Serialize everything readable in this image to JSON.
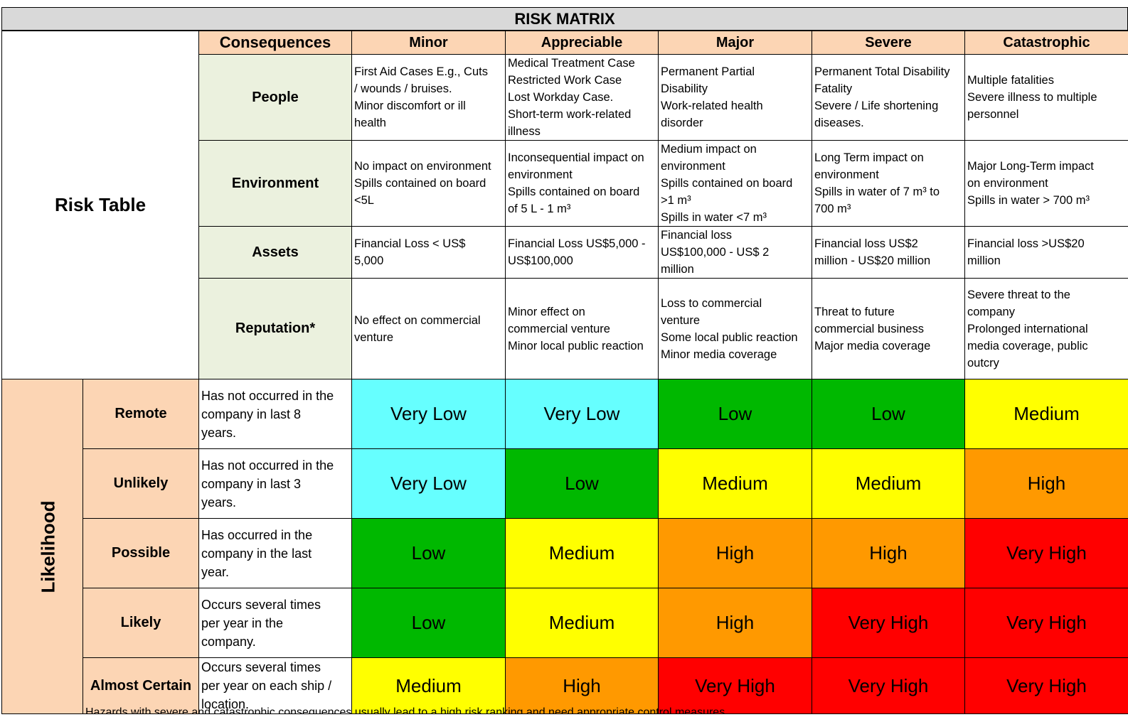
{
  "title": "RISK MATRIX",
  "risk_table_label": "Risk Table",
  "consequences_label": "Consequences",
  "likelihood_label": "Likelihood",
  "severity_levels": [
    "Minor",
    "Appreciable",
    "Major",
    "Severe",
    "Catastrophic"
  ],
  "categories": [
    {
      "name": "People",
      "descriptions": [
        "First Aid Cases E.g., Cuts\n/ wounds / bruises.\nMinor discomfort or ill\nhealth",
        "Medical Treatment Case\nRestricted Work Case\nLost Workday Case.\nShort-term work-related\nillness",
        "Permanent Partial\nDisability\nWork-related health\ndisorder",
        "Permanent Total Disability\nFatality\nSevere / Life shortening\ndiseases.",
        "Multiple fatalities\nSevere illness to multiple\npersonnel"
      ]
    },
    {
      "name": "Environment",
      "descriptions": [
        "No impact on environment\nSpills contained on board\n<5L",
        "Inconsequential impact on\nenvironment\nSpills contained on board\nof 5 L - 1 m³",
        "Medium impact on\nenvironment\nSpills contained on board\n>1 m³\nSpills in water <7 m³",
        "Long Term impact on\nenvironment\nSpills in water of 7 m³ to\n700 m³",
        "Major Long-Term impact\non environment\nSpills in water > 700 m³"
      ]
    },
    {
      "name": "Assets",
      "descriptions": [
        "Financial Loss < US$\n5,000",
        "Financial Loss US$5,000 -\nUS$100,000",
        "Financial loss\nUS$100,000 - US$ 2\nmillion",
        "Financial loss US$2\nmillion - US$20 million",
        "Financial loss >US$20\nmillion"
      ]
    },
    {
      "name": "Reputation*",
      "descriptions": [
        "No effect on commercial\nventure",
        "Minor effect on\ncommercial venture\nMinor local public reaction",
        "Loss to commercial\nventure\nSome local public reaction\nMinor media coverage",
        "Threat to future\ncommercial business\nMajor media coverage",
        "Severe threat to the\ncompany\nProlonged international\nmedia coverage, public\noutcry"
      ]
    }
  ],
  "likelihood_rows": [
    {
      "name": "Remote",
      "description": "Has not occurred in the\ncompany in last 8\nyears.",
      "ratings": [
        "Very Low",
        "Very Low",
        "Low",
        "Low",
        "Medium"
      ]
    },
    {
      "name": "Unlikely",
      "description": "Has not occurred in the\ncompany in last 3\nyears.",
      "ratings": [
        "Very Low",
        "Low",
        "Medium",
        "Medium",
        "High"
      ]
    },
    {
      "name": "Possible",
      "description": "Has occurred in the\ncompany in the last\nyear.",
      "ratings": [
        "Low",
        "Medium",
        "High",
        "High",
        "Very High"
      ]
    },
    {
      "name": "Likely",
      "description": "Occurs several times\nper year in the\ncompany.",
      "ratings": [
        "Low",
        "Medium",
        "High",
        "Very High",
        "Very High"
      ]
    },
    {
      "name": "Almost Certain",
      "description": "Occurs several times\nper year on each ship /\nlocation.",
      "ratings": [
        "Medium",
        "High",
        "Very High",
        "Very High",
        "Very High"
      ]
    }
  ],
  "rating_colors": {
    "Very Low": "#66ffff",
    "Low": "#00b800",
    "Medium": "#ffff00",
    "High": "#ff9900",
    "Very High": "#ff0000"
  },
  "colors": {
    "header_peach": "#fcd5b4",
    "category_green": "#ebf1de",
    "title_gray": "#d9d9d9"
  },
  "footnote": "Hazards with severe and catastrophic consequences usually lead to a high risk ranking and need appropriate control measures."
}
